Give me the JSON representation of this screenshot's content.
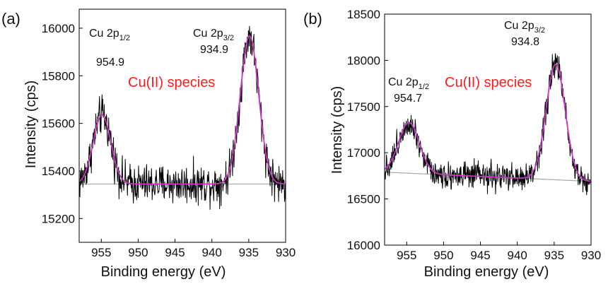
{
  "chart_data": [
    {
      "type": "line",
      "panel_label": "(a)",
      "xlabel": "Binding energy (eV)",
      "ylabel": "Intensity (cps)",
      "xlim": [
        958,
        930
      ],
      "ylim": [
        15100,
        16080
      ],
      "x_ticks": [
        955,
        950,
        945,
        940,
        935,
        930
      ],
      "y_ticks": [
        15200,
        15400,
        15600,
        15800,
        16000
      ],
      "annotation": "Cu(II) species",
      "colors": {
        "raw": "#000000",
        "fit": "#cc33cc",
        "background": "#a8a8a8",
        "annotation": "#ff1a1a"
      },
      "peaks": [
        {
          "name": "Cu 2p",
          "sub": "1/2",
          "energy_label": "954.9",
          "center": 954.9,
          "amp": 290,
          "width": 1.2
        },
        {
          "name": "Cu 2p",
          "sub": "3/2",
          "energy_label": "934.9",
          "center": 934.9,
          "amp": 622,
          "width": 1.25
        }
      ],
      "baseline_start": 15345,
      "baseline_end": 15345,
      "noise_amp": 70,
      "series": [
        {
          "name": "",
          "role": "raw"
        },
        {
          "name": "",
          "role": "fit"
        },
        {
          "name": "",
          "role": "background"
        }
      ]
    },
    {
      "type": "line",
      "panel_label": "(b)",
      "xlabel": "Binding energy (eV)",
      "ylabel": "Intensity (cps)",
      "xlim": [
        958,
        930
      ],
      "ylim": [
        16000,
        18500
      ],
      "x_ticks": [
        955,
        950,
        945,
        940,
        935,
        930
      ],
      "y_ticks": [
        16000,
        16500,
        17000,
        17500,
        18000,
        18500
      ],
      "annotation": "Cu(II) species",
      "colors": {
        "raw": "#000000",
        "fit": "#cc33cc",
        "background": "#a8a8a8",
        "annotation": "#ff1a1a"
      },
      "peaks": [
        {
          "name": "Cu 2p",
          "sub": "1/2",
          "energy_label": "954.7",
          "center": 954.7,
          "amp": 550,
          "width": 1.4
        },
        {
          "name": "Cu 2p",
          "sub": "3/2",
          "energy_label": "934.8",
          "center": 934.8,
          "amp": 1250,
          "width": 1.3
        }
      ],
      "baseline_start": 16790,
      "baseline_end": 16690,
      "noise_amp": 130,
      "series": [
        {
          "name": "",
          "role": "raw"
        },
        {
          "name": "",
          "role": "fit"
        },
        {
          "name": "",
          "role": "background"
        }
      ]
    }
  ]
}
